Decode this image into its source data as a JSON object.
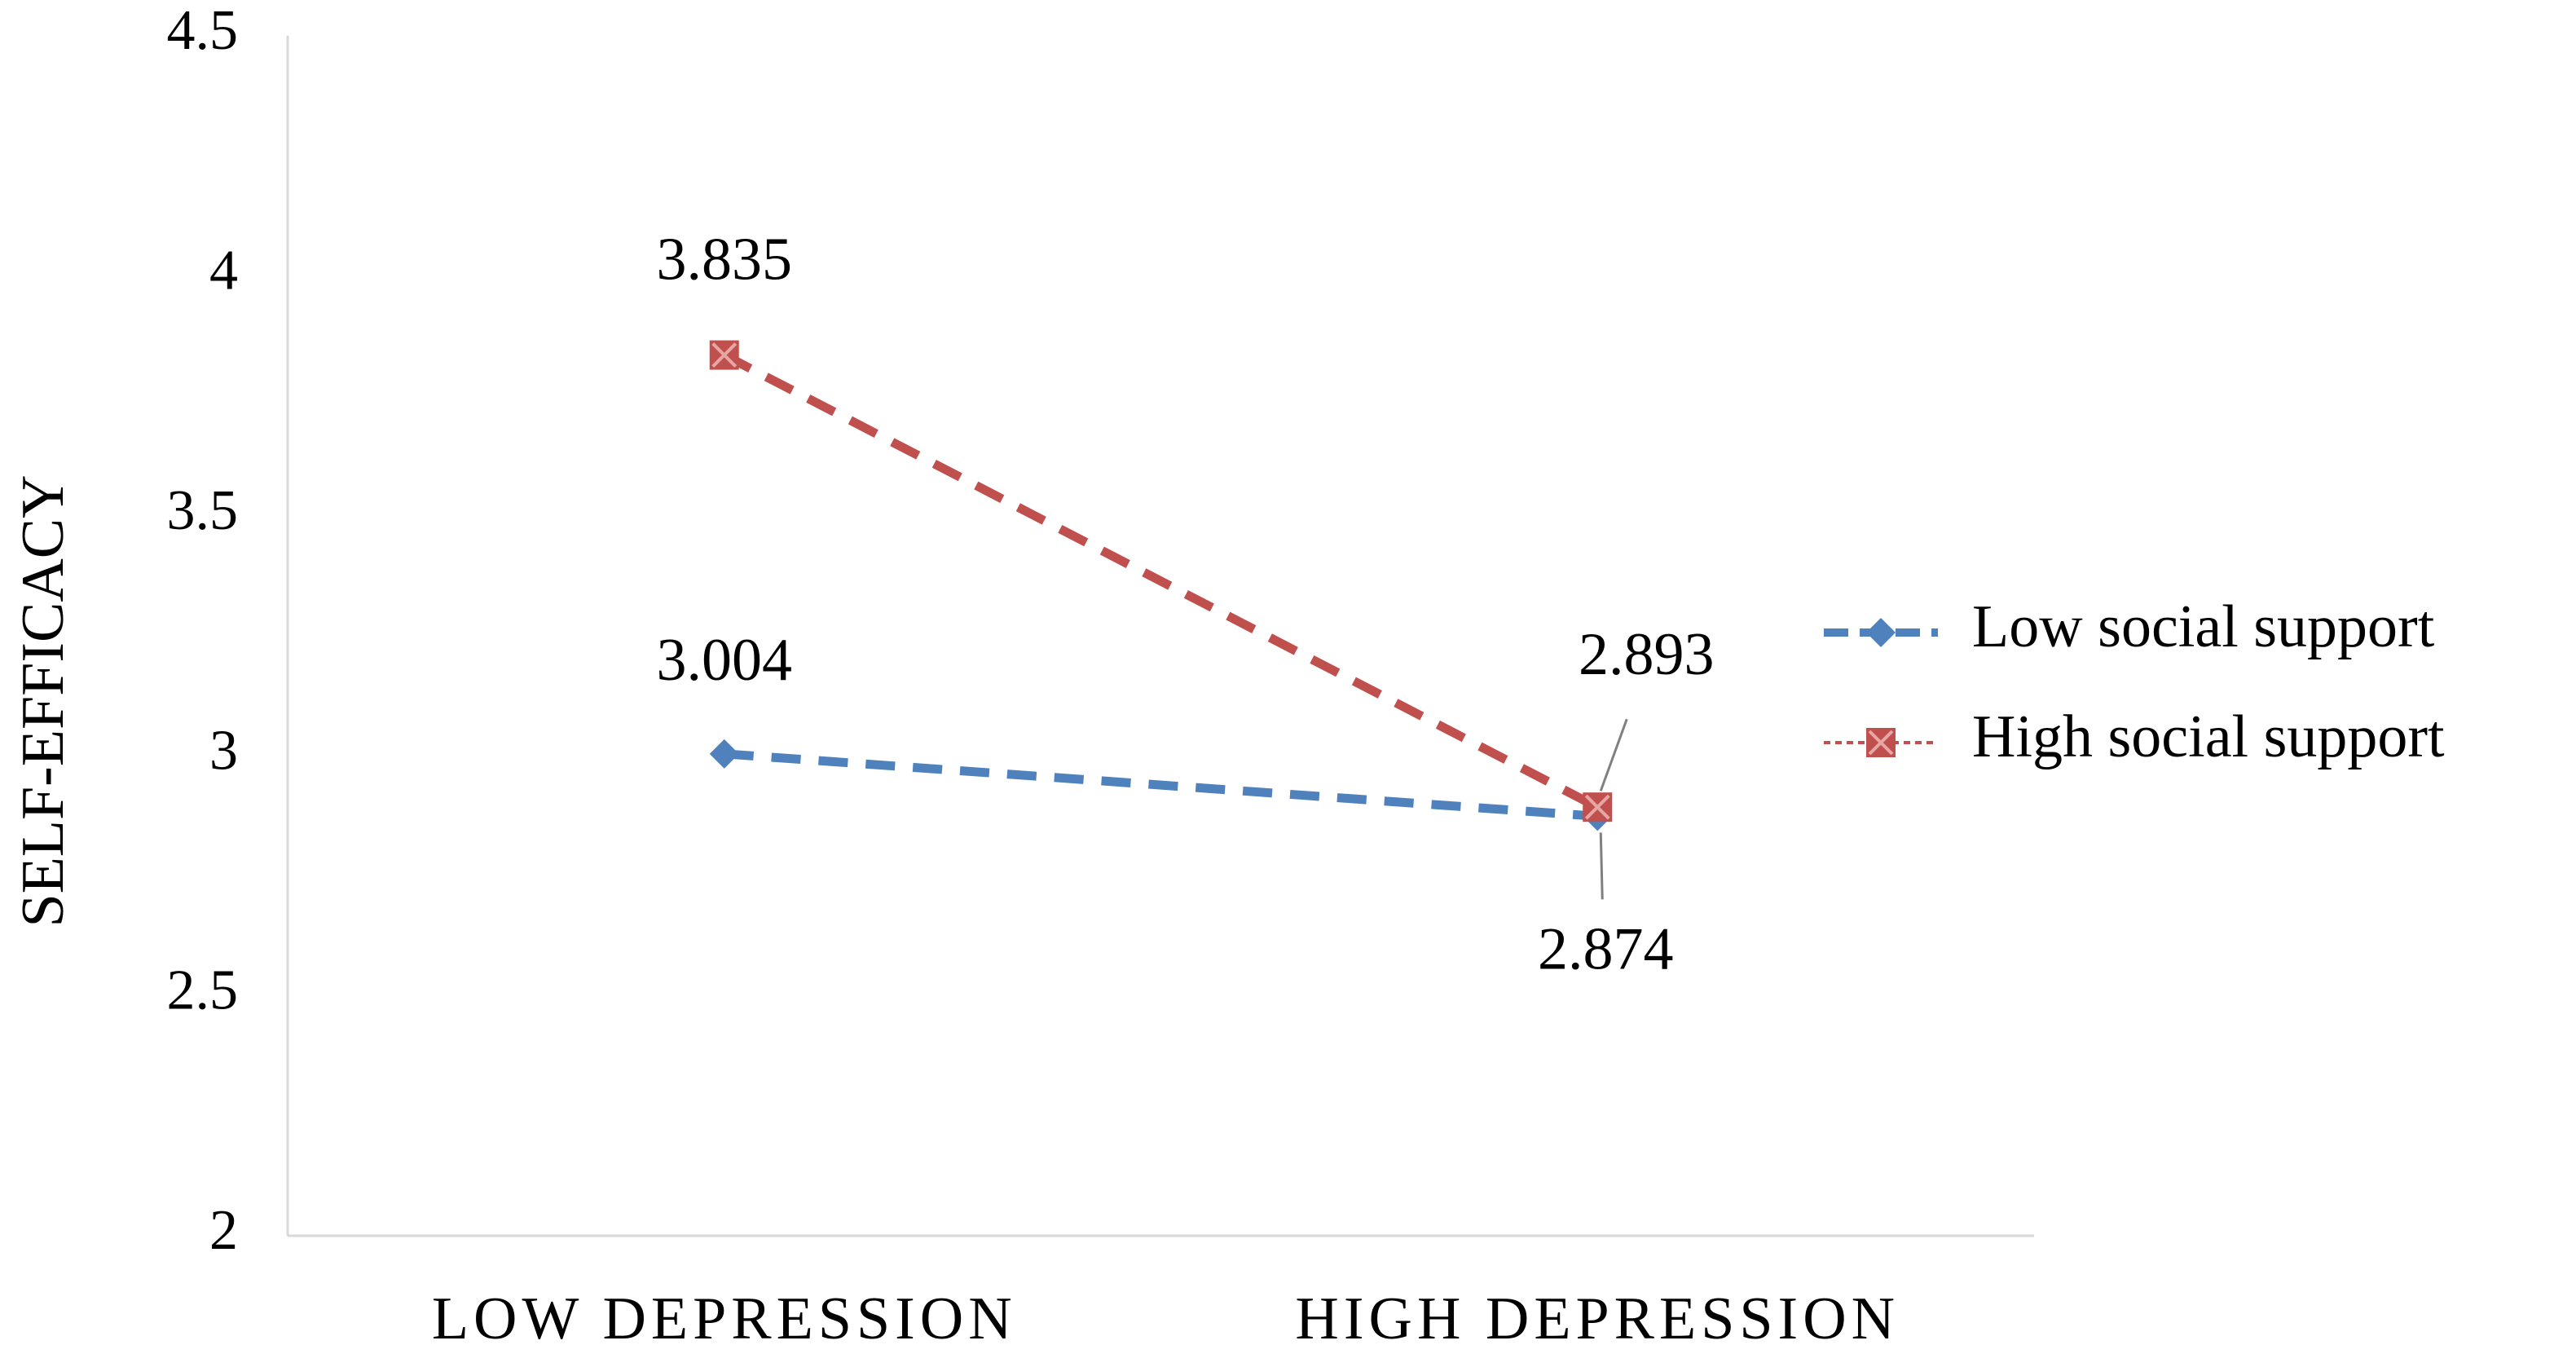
{
  "chart_data": {
    "type": "line",
    "y_label": "SELF-EFFICACY",
    "categories": [
      "LOW DEPRESSION",
      "HIGH DEPRESSION"
    ],
    "series": [
      {
        "name": "Low social support",
        "color": "#4f81bd",
        "values": [
          3.004,
          2.874
        ]
      },
      {
        "name": "High social support",
        "color": "#c0504d",
        "values": [
          3.835,
          2.893
        ]
      }
    ],
    "ylim": [
      2,
      4.5
    ],
    "yticks": [
      2,
      2.5,
      3,
      3.5,
      4,
      4.5
    ],
    "grid": false,
    "legend": "right"
  }
}
